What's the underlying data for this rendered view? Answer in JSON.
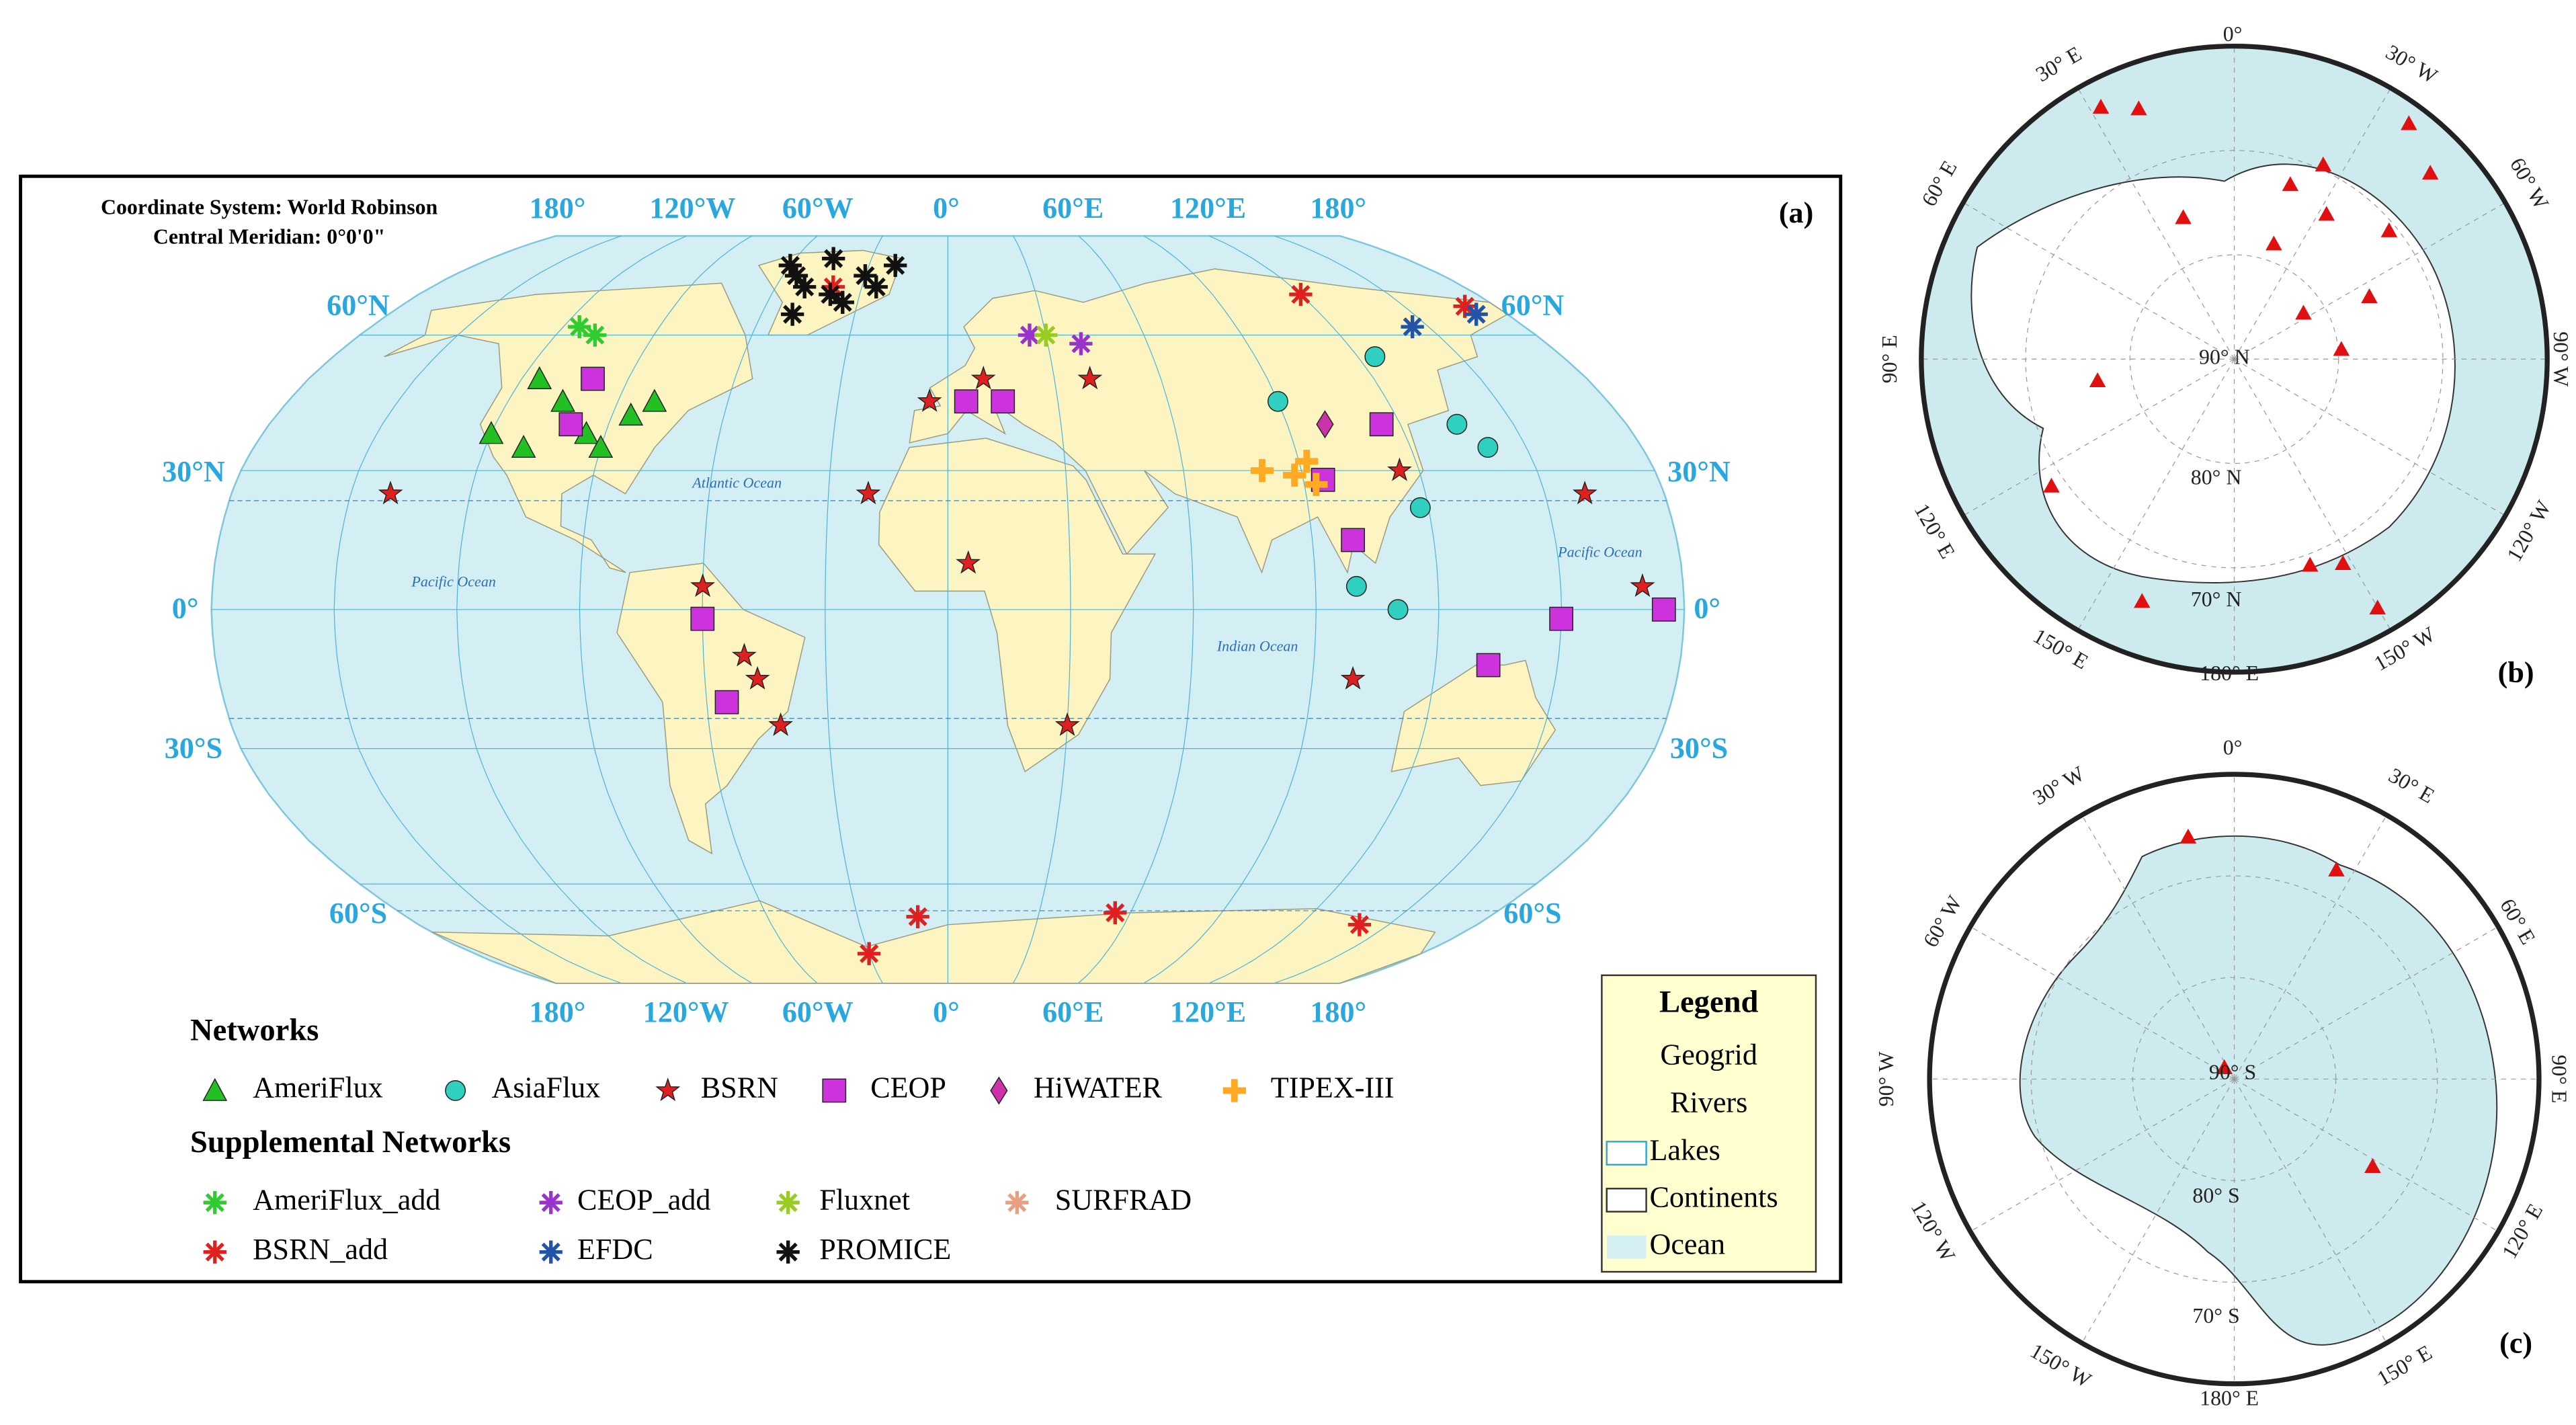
{
  "panel_a": {
    "label": "(a)",
    "title_lines": [
      "Coordinate System: World Robinson",
      "Central Meridian: 0°0'0\""
    ],
    "lon_labels_top": [
      "180°",
      "120°W",
      "60°W",
      "0°",
      "60°E",
      "120°E",
      "180°"
    ],
    "lon_labels_bottom": [
      "180°",
      "120°W",
      "60°W",
      "0°",
      "60°E",
      "120°E",
      "180°"
    ],
    "lat_labels_left": [
      "60°N",
      "30°N",
      "0°",
      "30°S",
      "60°S"
    ],
    "lat_labels_right": [
      "60°N",
      "30°N",
      "0°",
      "30°S",
      "60°S"
    ],
    "ocean_labels": [
      "Atlantic Ocean",
      "Pacific Ocean",
      "Indian Ocean",
      "Pacific Ocean"
    ],
    "networks_heading": "Networks",
    "networks": [
      "AmeriFlux",
      "AsiaFlux",
      "BSRN",
      "CEOP",
      "HiWATER",
      "TIPEX-III"
    ],
    "supplemental_heading": "Supplemental Networks",
    "supplemental": [
      "AmeriFlux_add",
      "CEOP_add",
      "Fluxnet",
      "SURFRAD",
      "BSRN_add",
      "EFDC",
      "PROMICE"
    ],
    "map_legend": {
      "title": "Legend",
      "items": [
        "Geogrid",
        "Rivers",
        "Lakes",
        "Continents",
        "Ocean"
      ]
    }
  },
  "panel_b": {
    "label": "(b)",
    "graticule_labels": [
      "0°",
      "30° E",
      "30° W",
      "60° E",
      "60° W",
      "90° E",
      "90° W",
      "120° E",
      "120° W",
      "150° E",
      "150° W",
      "180° E",
      "90° N",
      "80° N",
      "70° N"
    ]
  },
  "panel_c": {
    "label": "(c)",
    "graticule_labels": [
      "0°",
      "30° W",
      "30° E",
      "60° W",
      "60° E",
      "90° W",
      "90° E",
      "120° W",
      "120° E",
      "150° W",
      "150° E",
      "180° E",
      "90° S",
      "80° S",
      "70° S"
    ]
  }
}
